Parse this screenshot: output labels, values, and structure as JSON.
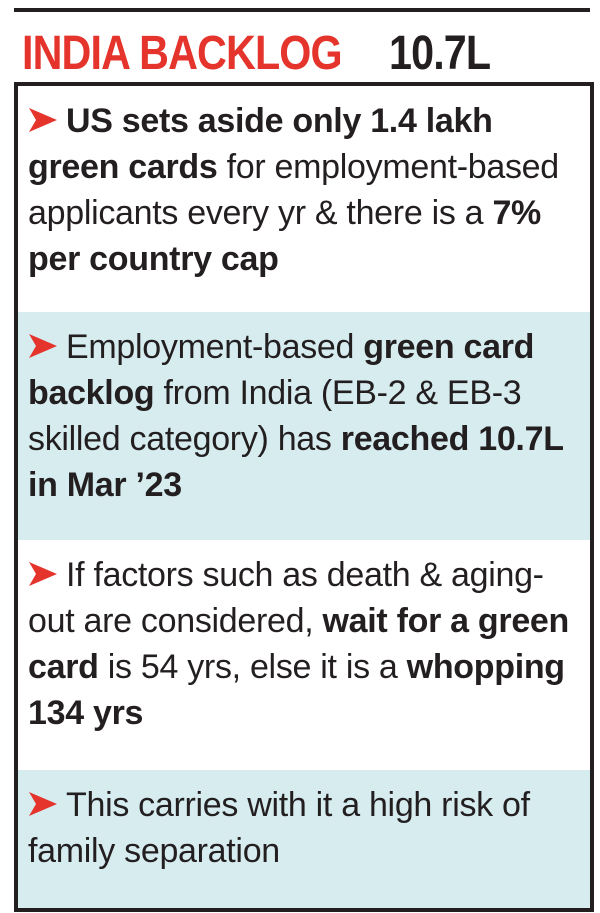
{
  "header": {
    "title_red": "INDIA BACKLOG",
    "title_value": "10.7L"
  },
  "accent_color": "#e4342c",
  "panel_shade_color": "#d6ecef",
  "bullets": [
    {
      "icon": "red-arrow-icon",
      "segments": [
        {
          "text": "US sets aside only 1.4 lakh green cards",
          "bold": true
        },
        {
          "text": " for employment-based applicants every yr & there is a ",
          "bold": false
        },
        {
          "text": "7% per country cap",
          "bold": true
        }
      ]
    },
    {
      "icon": "red-arrow-icon",
      "segments": [
        {
          "text": "Employment-based ",
          "bold": false
        },
        {
          "text": "green card backlog",
          "bold": true
        },
        {
          "text": " from India (EB-2 & EB-3 skilled category) has ",
          "bold": false
        },
        {
          "text": "reached 10.7L in Mar ’23",
          "bold": true
        }
      ]
    },
    {
      "icon": "red-arrow-icon",
      "segments": [
        {
          "text": "If factors such as death & aging-out are considered, ",
          "bold": false
        },
        {
          "text": "wait for a green card",
          "bold": true
        },
        {
          "text": " is 54 yrs, else it is a ",
          "bold": false
        },
        {
          "text": "whopping 134 yrs",
          "bold": true
        }
      ]
    },
    {
      "icon": "red-arrow-icon",
      "segments": [
        {
          "text": "This carries with it a high risk of family separation",
          "bold": false
        }
      ]
    }
  ]
}
